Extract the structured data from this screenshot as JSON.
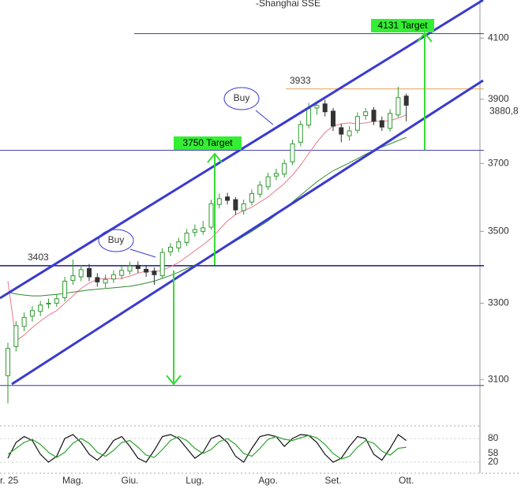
{
  "chart_data": {
    "type": "candlestick",
    "title": "-Shanghai SSE",
    "log_scale": true,
    "categories": [
      "r. 25",
      null,
      null,
      null,
      null,
      null,
      null,
      null,
      "Mag.",
      null,
      null,
      null,
      null,
      null,
      null,
      "Giu.",
      null,
      null,
      null,
      null,
      null,
      null,
      null,
      "Lug.",
      null,
      null,
      null,
      null,
      null,
      null,
      null,
      null,
      "Ago.",
      null,
      null,
      null,
      null,
      null,
      null,
      null,
      "Set.",
      null,
      null,
      null,
      null,
      null,
      null,
      null,
      null,
      "Ott."
    ],
    "open": [
      3110,
      3185,
      3238,
      3265,
      3278,
      3298,
      3300,
      3315,
      3362,
      3372,
      3395,
      3370,
      3355,
      3366,
      3376,
      3388,
      3404,
      3393,
      3388,
      3375,
      3442,
      3453,
      3468,
      3497,
      3500,
      3512,
      3578,
      3600,
      3592,
      3560,
      3585,
      3608,
      3630,
      3662,
      3668,
      3705,
      3765,
      3818,
      3872,
      3885,
      3862,
      3810,
      3785,
      3802,
      3848,
      3865,
      3832,
      3808,
      3850,
      3910
    ],
    "high": [
      3195,
      3252,
      3275,
      3292,
      3306,
      3312,
      3325,
      3372,
      3420,
      3405,
      3408,
      3382,
      3378,
      3390,
      3402,
      3414,
      3415,
      3405,
      3398,
      3452,
      3466,
      3482,
      3507,
      3520,
      3530,
      3592,
      3610,
      3612,
      3600,
      3592,
      3622,
      3647,
      3672,
      3684,
      3712,
      3772,
      3832,
      3888,
      3895,
      3898,
      3872,
      3822,
      3815,
      3858,
      3872,
      3875,
      3845,
      3868,
      3940,
      3918
    ],
    "low": [
      3040,
      3172,
      3225,
      3250,
      3265,
      3286,
      3290,
      3305,
      3350,
      3360,
      3360,
      3345,
      3342,
      3355,
      3365,
      3378,
      3383,
      3372,
      3350,
      3368,
      3430,
      3441,
      3458,
      3485,
      3490,
      3505,
      3566,
      3578,
      3548,
      3548,
      3575,
      3598,
      3620,
      3650,
      3658,
      3695,
      3752,
      3808,
      3850,
      3845,
      3800,
      3765,
      3770,
      3792,
      3835,
      3818,
      3800,
      3798,
      3842,
      3830
    ],
    "close": [
      3180,
      3240,
      3262,
      3280,
      3295,
      3300,
      3312,
      3360,
      3375,
      3392,
      3372,
      3358,
      3365,
      3378,
      3390,
      3402,
      3395,
      3385,
      3378,
      3440,
      3455,
      3470,
      3495,
      3505,
      3510,
      3580,
      3595,
      3590,
      3562,
      3580,
      3610,
      3635,
      3660,
      3670,
      3700,
      3760,
      3820,
      3870,
      3880,
      3860,
      3815,
      3790,
      3800,
      3845,
      3860,
      3830,
      3812,
      3855,
      3905,
      3880.8
    ],
    "last_price_label": "3880,8",
    "up_color": "#2f9a2f",
    "down_color": "#333333",
    "series": [
      {
        "color": "#e87a8a",
        "values": [
          3360,
          3200,
          3215,
          3235,
          3252,
          3268,
          3280,
          3300,
          3320,
          3340,
          3355,
          3365,
          3368,
          3366,
          3368,
          3374,
          3382,
          3388,
          3386,
          3390,
          3400,
          3412,
          3428,
          3445,
          3462,
          3480,
          3505,
          3530,
          3548,
          3560,
          3570,
          3585,
          3600,
          3620,
          3640,
          3665,
          3695,
          3730,
          3765,
          3795,
          3815,
          3822,
          3825,
          3822,
          3825,
          3830,
          3830,
          3832,
          3840,
          3850
        ]
      },
      {
        "color": "#2e8b2e",
        "values": [
          3330,
          3325,
          3322,
          3320,
          3320,
          3322,
          3324,
          3327,
          3330,
          3333,
          3336,
          3338,
          3340,
          3342,
          3344,
          3346,
          3350,
          3355,
          3360,
          3368,
          3376,
          3385,
          3395,
          3405,
          3418,
          3430,
          3444,
          3458,
          3472,
          3486,
          3500,
          3515,
          3530,
          3548,
          3565,
          3585,
          3605,
          3625,
          3645,
          3662,
          3678,
          3690,
          3702,
          3715,
          3728,
          3740,
          3750,
          3760,
          3770,
          3780
        ]
      }
    ],
    "ylim": [
      3000,
      4230
    ],
    "yticks": [
      3100,
      3300,
      3500,
      3700,
      3900,
      4100
    ],
    "levels": [
      {
        "value": 3403,
        "label": "3403",
        "color": "#1a1a8c"
      },
      {
        "value": 3933,
        "label": "3933",
        "color": "#e0a050"
      },
      {
        "value": 3740,
        "color": "#3a3aa0"
      },
      {
        "value": 3085,
        "color": "#3a3aa0"
      },
      {
        "value": 4115,
        "color": "#3a3aa0"
      }
    ],
    "annotations": [
      "3750 Target",
      "4131 Target",
      "Buy",
      "Buy"
    ],
    "stochastic": {
      "ylim": [
        0,
        100
      ],
      "yticks": [
        20,
        80
      ],
      "series": [
        {
          "color": "#111111",
          "values": [
            30,
            70,
            85,
            75,
            40,
            20,
            35,
            80,
            90,
            70,
            40,
            25,
            45,
            75,
            85,
            60,
            30,
            20,
            50,
            85,
            90,
            80,
            55,
            30,
            45,
            80,
            88,
            70,
            35,
            20,
            55,
            85,
            90,
            85,
            60,
            80,
            90,
            88,
            70,
            40,
            20,
            30,
            60,
            85,
            80,
            40,
            25,
            55,
            90,
            75
          ]
        },
        {
          "color": "#2aa52a",
          "values": [
            40,
            55,
            70,
            78,
            65,
            45,
            32,
            45,
            68,
            80,
            68,
            45,
            35,
            50,
            70,
            75,
            58,
            38,
            32,
            52,
            75,
            85,
            75,
            55,
            42,
            52,
            72,
            80,
            65,
            42,
            35,
            55,
            78,
            85,
            78,
            75,
            82,
            88,
            82,
            65,
            42,
            28,
            35,
            58,
            75,
            68,
            48,
            38,
            55,
            58
          ]
        }
      ]
    }
  }
}
